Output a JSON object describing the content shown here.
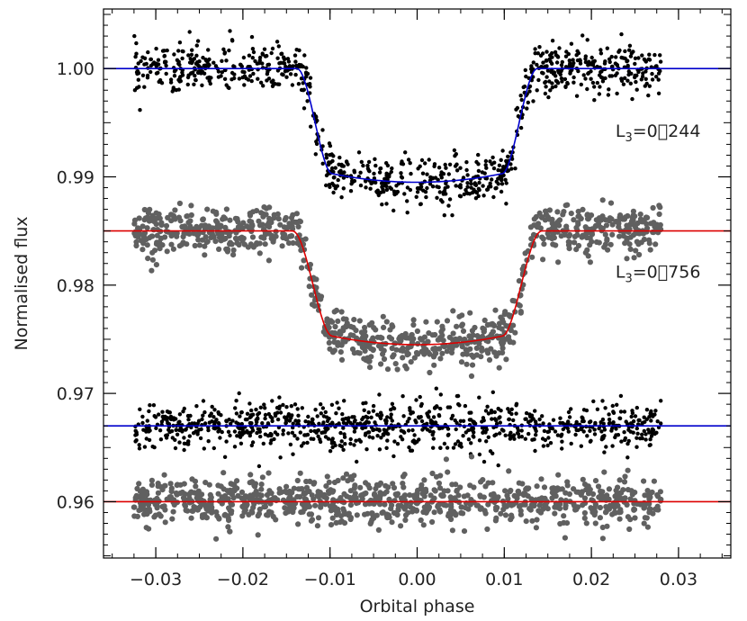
{
  "chart_data": {
    "type": "scatter",
    "title": "",
    "xlabel": "Orbital phase",
    "ylabel": "Normalised flux",
    "xlim": [
      -0.036,
      0.036
    ],
    "ylim": [
      0.9548,
      1.0055
    ],
    "grid": false,
    "x_ticks": [
      -0.03,
      -0.02,
      -0.01,
      0.0,
      0.01,
      0.02,
      0.03
    ],
    "x_tick_labels": [
      "−0.03",
      "−0.02",
      "−0.01",
      "0.00",
      "0.01",
      "0.02",
      "0.03"
    ],
    "y_ticks": [
      0.96,
      0.97,
      0.98,
      0.99,
      1.0
    ],
    "y_tick_labels": [
      "0.96",
      "0.97",
      "0.98",
      "0.99",
      "1.00"
    ],
    "annotations": [
      {
        "text_main": "L",
        "text_sub": "3",
        "text_rest": "=0⃘244",
        "x": 0.0145,
        "y": 0.9937
      },
      {
        "text_main": "L",
        "text_sub": "3",
        "text_rest": "=0⃘756",
        "x": 0.0145,
        "y": 0.9807
      }
    ],
    "series": [
      {
        "kind": "points",
        "color": "#000000",
        "point_radius": 2.2,
        "phase_range": [
          -0.0325,
          0.028
        ],
        "count": 900,
        "scatter_sigma": 0.0011,
        "model": {
          "baseline": 1.0,
          "depth": 0.0105,
          "t_full": 0.0098,
          "t_outer": 0.0138,
          "limb": 0.0008
        }
      },
      {
        "kind": "model",
        "color": "#0000cc",
        "model": {
          "baseline": 1.0,
          "depth": 0.0105,
          "t_full": 0.0098,
          "t_outer": 0.0138,
          "limb": 0.0008
        }
      },
      {
        "kind": "points",
        "color": "#606060",
        "point_radius": 3.1,
        "phase_range": [
          -0.0325,
          0.028
        ],
        "count": 900,
        "scatter_sigma": 0.0011,
        "model": {
          "baseline": 0.985,
          "depth": 0.0105,
          "t_full": 0.0098,
          "t_outer": 0.0143,
          "limb": 0.0008
        }
      },
      {
        "kind": "model",
        "color": "#dd0000",
        "model": {
          "baseline": 0.985,
          "depth": 0.0105,
          "t_full": 0.0098,
          "t_outer": 0.0143,
          "limb": 0.0008
        }
      },
      {
        "kind": "points",
        "color": "#000000",
        "point_radius": 2.2,
        "phase_range": [
          -0.0325,
          0.028
        ],
        "count": 900,
        "scatter_sigma": 0.0011,
        "model": {
          "baseline": 0.967,
          "depth": 0,
          "t_full": 0.0098,
          "t_outer": 0.0138,
          "limb": 0
        }
      },
      {
        "kind": "model",
        "color": "#0000cc",
        "model": {
          "baseline": 0.967,
          "depth": 0,
          "t_full": 0.0098,
          "t_outer": 0.0138,
          "limb": 0
        }
      },
      {
        "kind": "points",
        "color": "#606060",
        "point_radius": 3.1,
        "phase_range": [
          -0.0325,
          0.028
        ],
        "count": 900,
        "scatter_sigma": 0.0011,
        "model": {
          "baseline": 0.96,
          "depth": 0,
          "t_full": 0.0098,
          "t_outer": 0.0143,
          "limb": 0
        }
      },
      {
        "kind": "model",
        "color": "#dd0000",
        "model": {
          "baseline": 0.96,
          "depth": 0,
          "t_full": 0.0098,
          "t_outer": 0.0143,
          "limb": 0
        }
      }
    ]
  }
}
